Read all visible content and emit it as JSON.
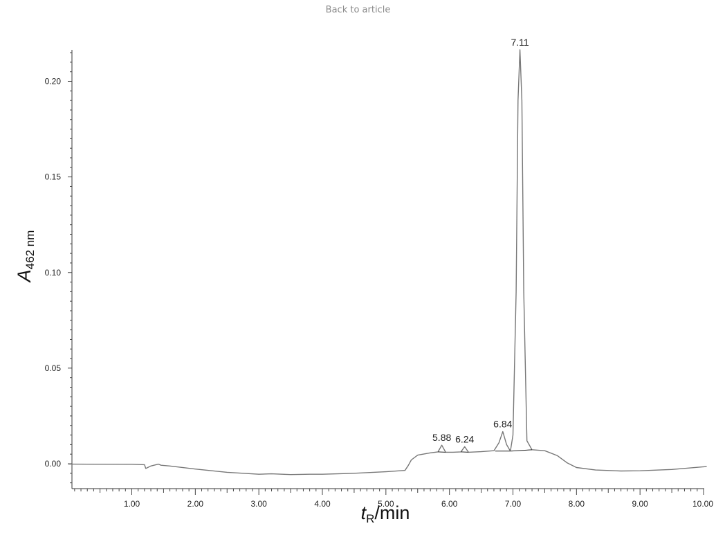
{
  "header": {
    "back_link": "Back to article"
  },
  "chart_data": {
    "type": "line",
    "xlabel": "tR/min",
    "xlabel_main": "t",
    "xlabel_sub": "R",
    "xlabel_rest": "/min",
    "ylabel": "A462 nm",
    "ylabel_main": "A",
    "ylabel_sub": "462 nm",
    "xlim": [
      0.0,
      10.05
    ],
    "ylim": [
      -0.013,
      0.217
    ],
    "x_ticks": [
      1.0,
      2.0,
      3.0,
      4.0,
      5.0,
      6.0,
      7.0,
      8.0,
      9.0,
      10.0
    ],
    "x_tick_labels": [
      "1.00",
      "2.00",
      "3.00",
      "4.00",
      "5.00",
      "6.00",
      "7.00",
      "8.00",
      "9.00",
      "10.00"
    ],
    "y_ticks": [
      0.0,
      0.05,
      0.1,
      0.15,
      0.2
    ],
    "y_tick_labels": [
      "0.00",
      "0.05",
      "0.10",
      "0.15",
      "0.20"
    ],
    "grid": false,
    "line_color": "#777777",
    "baseline_color": "#222222",
    "peaks": [
      {
        "x": 5.88,
        "label": "5.88",
        "height": 0.0097
      },
      {
        "x": 6.24,
        "label": "6.24",
        "height": 0.0089
      },
      {
        "x": 6.84,
        "label": "6.84",
        "height": 0.0168
      },
      {
        "x": 7.11,
        "label": "7.11",
        "height": 0.2165
      }
    ],
    "series": [
      {
        "x": [
          0.0,
          1.0,
          1.2,
          1.22,
          1.3,
          1.42,
          1.46,
          1.6,
          2.0,
          2.5,
          3.0,
          3.2,
          3.5,
          3.8,
          4.0,
          4.5,
          5.0,
          5.3,
          5.35,
          5.4,
          5.5,
          5.7,
          5.82,
          5.88,
          5.94,
          6.05,
          6.18,
          6.24,
          6.3,
          6.5,
          6.7,
          6.78,
          6.84,
          6.9,
          6.96,
          7.0,
          7.05,
          7.08,
          7.11,
          7.14,
          7.17,
          7.22,
          7.3,
          7.5,
          7.7,
          7.85,
          8.0,
          8.3,
          8.7,
          9.0,
          9.5,
          10.05
        ],
        "y": [
          -0.0002,
          -0.0003,
          -0.0005,
          -0.0025,
          -0.0012,
          -0.0002,
          -0.0008,
          -0.0012,
          -0.0028,
          -0.0045,
          -0.0055,
          -0.0053,
          -0.0057,
          -0.0055,
          -0.0055,
          -0.005,
          -0.0042,
          -0.0035,
          -0.001,
          0.002,
          0.0045,
          0.0057,
          0.0062,
          0.0097,
          0.006,
          0.006,
          0.0062,
          0.0089,
          0.006,
          0.0063,
          0.0068,
          0.011,
          0.0168,
          0.01,
          0.0066,
          0.015,
          0.09,
          0.19,
          0.2165,
          0.19,
          0.09,
          0.012,
          0.0073,
          0.0068,
          0.0042,
          0.0005,
          -0.002,
          -0.0033,
          -0.0038,
          -0.0037,
          -0.003,
          -0.0015
        ]
      }
    ]
  }
}
